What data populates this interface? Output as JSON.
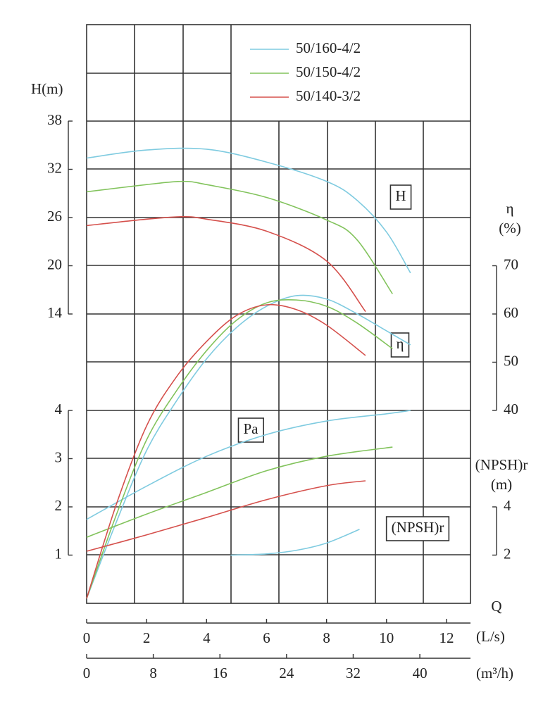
{
  "chart_data": {
    "type": "line",
    "x_label": "Q",
    "x_unit": "(L/s)",
    "xlim": [
      0,
      12.8
    ],
    "xticks": [
      0,
      2,
      4,
      6,
      8,
      10,
      12
    ],
    "x2_unit": "(m³/h)",
    "x2lim": [
      0,
      46.08
    ],
    "x2ticks": [
      0,
      8,
      16,
      24,
      32,
      40
    ],
    "y_axes": [
      {
        "label": [
          "H(m)"
        ],
        "tag": "H",
        "lim": [
          -22,
          50
        ],
        "ticks": [
          14,
          20,
          26,
          32,
          38
        ]
      },
      {
        "label": [
          "η",
          "(%)"
        ],
        "tag": "η",
        "lim": [
          0,
          120
        ],
        "ticks": [
          40,
          50,
          60,
          70
        ]
      },
      {
        "tag": "Pa",
        "lim": [
          0,
          12
        ],
        "ticks": [
          1,
          2,
          3,
          4
        ]
      },
      {
        "label": [
          "(NPSH)r",
          "(m)"
        ],
        "tag": "(NPSH)r",
        "lim": [
          0,
          24
        ],
        "ticks": [
          2,
          4
        ]
      }
    ],
    "series": [
      {
        "name": "50/160-4/2",
        "color": "#7fcbe0",
        "curves": [
          {
            "axis": 0,
            "x": [
              0,
              2,
              4,
              6,
              8,
              9,
              10,
              10.8
            ],
            "values": [
              33.4,
              34.4,
              34.5,
              32.9,
              30.5,
              28.2,
              24.2,
              19.1
            ]
          },
          {
            "axis": 1,
            "x": [
              0,
              1,
              2,
              3,
              4,
              5,
              6,
              7,
              8,
              9,
              10,
              10.8
            ],
            "values": [
              1,
              17,
              31.7,
              42,
              50.7,
              57.2,
              61.6,
              63.8,
              63.1,
              60.1,
              56.5,
              53.6
            ]
          },
          {
            "axis": 2,
            "x": [
              0,
              2,
              4,
              6,
              8,
              10,
              10.8
            ],
            "values": [
              1.74,
              2.43,
              3.05,
              3.5,
              3.78,
              3.93,
              4.0
            ]
          },
          {
            "axis": 3,
            "x": [
              4.8,
              6,
              7,
              8,
              9.1
            ],
            "values": [
              2.0,
              2.05,
              2.2,
              2.5,
              3.07
            ]
          }
        ]
      },
      {
        "name": "50/150-4/2",
        "color": "#82c35c",
        "curves": [
          {
            "axis": 0,
            "x": [
              0,
              2,
              3.2,
              4,
              6,
              8,
              9,
              10.2
            ],
            "values": [
              29.2,
              30.1,
              30.5,
              30.1,
              28.5,
              25.7,
              23.3,
              16.5
            ]
          },
          {
            "axis": 1,
            "x": [
              0,
              1,
              2,
              3,
              4,
              5,
              6,
              7,
              8,
              9,
              10.2
            ],
            "values": [
              1,
              18.5,
              33.9,
              44.1,
              52.4,
              58.7,
              62.3,
              62.9,
              61.6,
              58.2,
              52.8
            ]
          },
          {
            "axis": 2,
            "x": [
              0,
              2,
              4,
              6,
              8,
              10.2
            ],
            "values": [
              1.37,
              1.85,
              2.3,
              2.75,
              3.05,
              3.24
            ]
          }
        ]
      },
      {
        "name": "50/140-3/2",
        "color": "#d5504c",
        "curves": [
          {
            "axis": 0,
            "x": [
              0,
              2,
              3.2,
              4,
              6,
              8,
              9.3
            ],
            "values": [
              25.0,
              25.8,
              26.1,
              25.8,
              24.3,
              20.6,
              14.3
            ]
          },
          {
            "axis": 1,
            "x": [
              0,
              1,
              2,
              3,
              4,
              5,
              6,
              7,
              8,
              9.3
            ],
            "values": [
              1,
              20.7,
              36.8,
              47,
              54.3,
              59.7,
              61.9,
              60.9,
              57.7,
              51.4
            ]
          },
          {
            "axis": 2,
            "x": [
              0,
              2,
              4,
              6,
              8,
              9.3
            ],
            "values": [
              1.08,
              1.42,
              1.78,
              2.15,
              2.44,
              2.54
            ]
          }
        ]
      }
    ]
  }
}
